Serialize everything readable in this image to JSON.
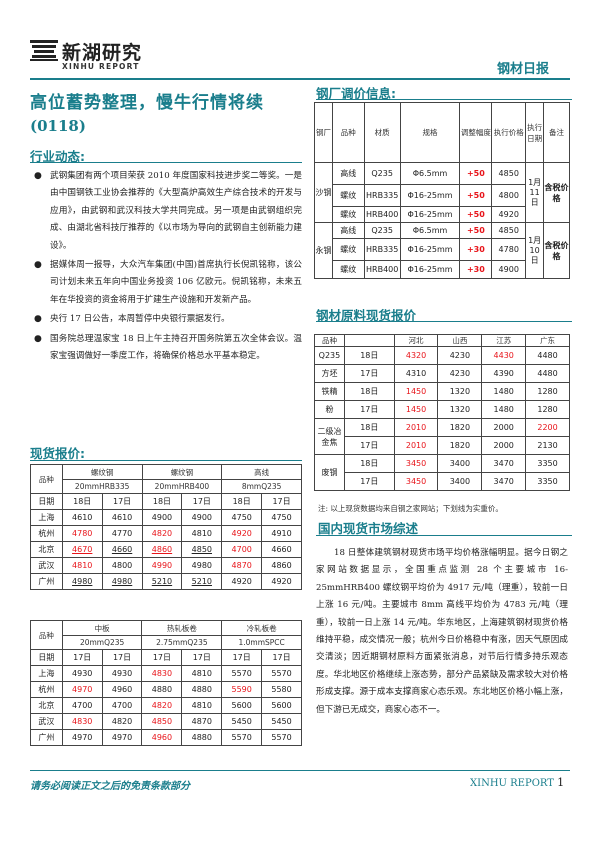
{
  "header": {
    "logo_cn": "新湖研究",
    "logo_en": "XINHU REPORT",
    "report_name": "钢材日报"
  },
  "headline": {
    "title": "高位蓄势整理，慢牛行情将续",
    "date": "(0118)"
  },
  "industry": {
    "title": "行业动态:",
    "items": [
      "武钢集团有两个项目荣获 2010 年度国家科技进步奖二等奖。一是由中国钢铁工业协会推荐的《大型高炉高效生产综合技术的开发与应用》，由武钢和武汉科技大学共同完成。另一项是由武钢组织完成、由湖北省科技厅推荐的《以市场为导向的武钢自主创新能力建设》。",
      "据媒体周一报导，大众汽车集团(中国)首席执行长倪凯铭称，该公司计划未来五年向中国业务投资 106 亿欧元。倪凯铭称，未来五年在华投资的资金将用于扩建生产设施和开发新产品。",
      "央行 17 日公告，本周暂停中央银行票据发行。",
      "国务院总理温家宝 18 日上午主持召开国务院第五次全体会议。温家宝强调做好一季度工作，将确保价格总水平基本稳定。"
    ]
  },
  "spot": {
    "title": "现货报价:",
    "table1": {
      "header_row1": [
        "品种",
        "螺纹钢",
        "螺纹钢",
        "高线"
      ],
      "header_row2": [
        "20mmHRB335",
        "20mmHRB400",
        "8mmQ235"
      ],
      "date_label": "日期",
      "dates": [
        "18日",
        "17日",
        "18日",
        "17日",
        "18日",
        "17日"
      ],
      "rows": [
        {
          "city": "上海",
          "values": [
            "4610",
            "4610",
            "4900",
            "4900",
            "4750",
            "4750"
          ]
        },
        {
          "city": "杭州",
          "values": [
            "4780",
            "4770",
            "4820",
            "4810",
            "4920",
            "4910"
          ]
        },
        {
          "city": "北京",
          "values": [
            "4670",
            "4660",
            "4860",
            "4850",
            "4700",
            "4660"
          ]
        },
        {
          "city": "武汉",
          "values": [
            "4810",
            "4800",
            "4990",
            "4980",
            "4870",
            "4860"
          ]
        },
        {
          "city": "广州",
          "values": [
            "4980",
            "4980",
            "5210",
            "5210",
            "4920",
            "4920"
          ]
        }
      ]
    },
    "table2": {
      "header_row1": [
        "品种",
        "中板",
        "热轧板卷",
        "冷轧板卷"
      ],
      "header_row2": [
        "20mmQ235",
        "2.75mmQ235",
        "1.0mmSPCC"
      ],
      "date_label": "日期",
      "dates": [
        "17日",
        "17日",
        "17日",
        "17日",
        "17日",
        "17日"
      ],
      "rows": [
        {
          "city": "上海",
          "values": [
            "4930",
            "4930",
            "4830",
            "4810",
            "5570",
            "5570"
          ]
        },
        {
          "city": "杭州",
          "values": [
            "4970",
            "4960",
            "4880",
            "4880",
            "5590",
            "5580"
          ]
        },
        {
          "city": "北京",
          "values": [
            "4700",
            "4700",
            "4820",
            "4810",
            "5600",
            "5600"
          ]
        },
        {
          "city": "武汉",
          "values": [
            "4830",
            "4820",
            "4850",
            "4870",
            "5450",
            "5450"
          ]
        },
        {
          "city": "广州",
          "values": [
            "4970",
            "4970",
            "4960",
            "4880",
            "5570",
            "5570"
          ]
        }
      ]
    }
  },
  "mill": {
    "title": "钢厂调价信息:",
    "headers": [
      "钢厂",
      "品种",
      "材质",
      "规格",
      "调整幅度",
      "执行价格",
      "执行日期",
      "备注"
    ],
    "rows": [
      {
        "mill": "沙钢",
        "product": "高线",
        "grade": "Q235",
        "spec": "Φ6.5mm",
        "change": "+50",
        "price": "4850"
      },
      {
        "mill": "沙钢",
        "product": "螺纹",
        "grade": "HRB335",
        "spec": "Φ16-25mm",
        "change": "+50",
        "price": "4800"
      },
      {
        "mill": "沙钢",
        "product": "螺纹",
        "grade": "HRB400",
        "spec": "Φ16-25mm",
        "change": "+50",
        "price": "4920"
      },
      {
        "mill": "永钢",
        "product": "高线",
        "grade": "Q235",
        "spec": "Φ6.5mm",
        "change": "+50",
        "price": "4850"
      },
      {
        "mill": "永钢",
        "product": "螺纹",
        "grade": "HRB335",
        "spec": "Φ16-25mm",
        "change": "+30",
        "price": "4780"
      },
      {
        "mill": "永钢",
        "product": "螺纹",
        "grade": "HRB400",
        "spec": "Φ16-25mm",
        "change": "+30",
        "price": "4900"
      }
    ],
    "dates": [
      "1月11日",
      "1月10日"
    ],
    "notes": [
      "含税价格",
      "含税价格"
    ]
  },
  "raw": {
    "title": "钢材原料现货报价",
    "headers": [
      "品种",
      "",
      "河北",
      "山西",
      "江苏",
      "广东"
    ],
    "rows": [
      {
        "item": "Q235",
        "date": "18日",
        "values": [
          "4320",
          "4230",
          "4430",
          "4480"
        ]
      },
      {
        "item": "方坯",
        "date": "17日",
        "values": [
          "4310",
          "4230",
          "4390",
          "4480"
        ]
      },
      {
        "item": "铁精",
        "date": "18日",
        "values": [
          "1450",
          "1320",
          "1480",
          "1280"
        ]
      },
      {
        "item": "粉",
        "date": "17日",
        "values": [
          "1450",
          "1320",
          "1480",
          "1280"
        ]
      },
      {
        "item": "二级冶金焦",
        "date": "18日",
        "values": [
          "2010",
          "1820",
          "2000",
          "2200"
        ]
      },
      {
        "item": "",
        "date": "17日",
        "values": [
          "2010",
          "1820",
          "2000",
          "2130"
        ]
      },
      {
        "item": "废钢",
        "date": "18日",
        "values": [
          "3450",
          "3400",
          "3470",
          "3350"
        ]
      },
      {
        "item": "",
        "date": "17日",
        "values": [
          "3450",
          "3400",
          "3470",
          "3350"
        ]
      }
    ],
    "note": "注: 以上现货数据均来自钢之家网站；下划线为实重价。"
  },
  "market": {
    "title": "国内现货市场综述",
    "text": "18 日整体建筑钢材现货市场平均价格涨幅明显。据今日钢之家网站数据显示，全国重点监测 28 个主要城市 16-25mmHRB400 螺纹钢平均价为 4917 元/吨（理重），较前一日上涨 16 元/吨。主要城市 8mm 高线平均价为 4783 元/吨（理重），较前一日上涨 14 元/吨。华东地区，上海建筑钢材现货价格维持平稳，成交情况一般；杭州今日价格稳中有涨，因天气原因成交清淡；因近期钢材原料方面紧张消息，对节后行情多持乐观态度。华北地区价格继续上涨态势，部分产品紧缺及需求较大对价格形成支撑。源于成本支撑商家心态乐观。东北地区价格小幅上涨，但下游已无成交，商家心态不一。"
  },
  "footer": {
    "disclaimer": "请务必阅读正文之后的免责条款部分",
    "brand": "XINHU REPORT",
    "page": "1"
  },
  "colors": {
    "accent": "#1a7e8c",
    "red": "#e8141a"
  }
}
